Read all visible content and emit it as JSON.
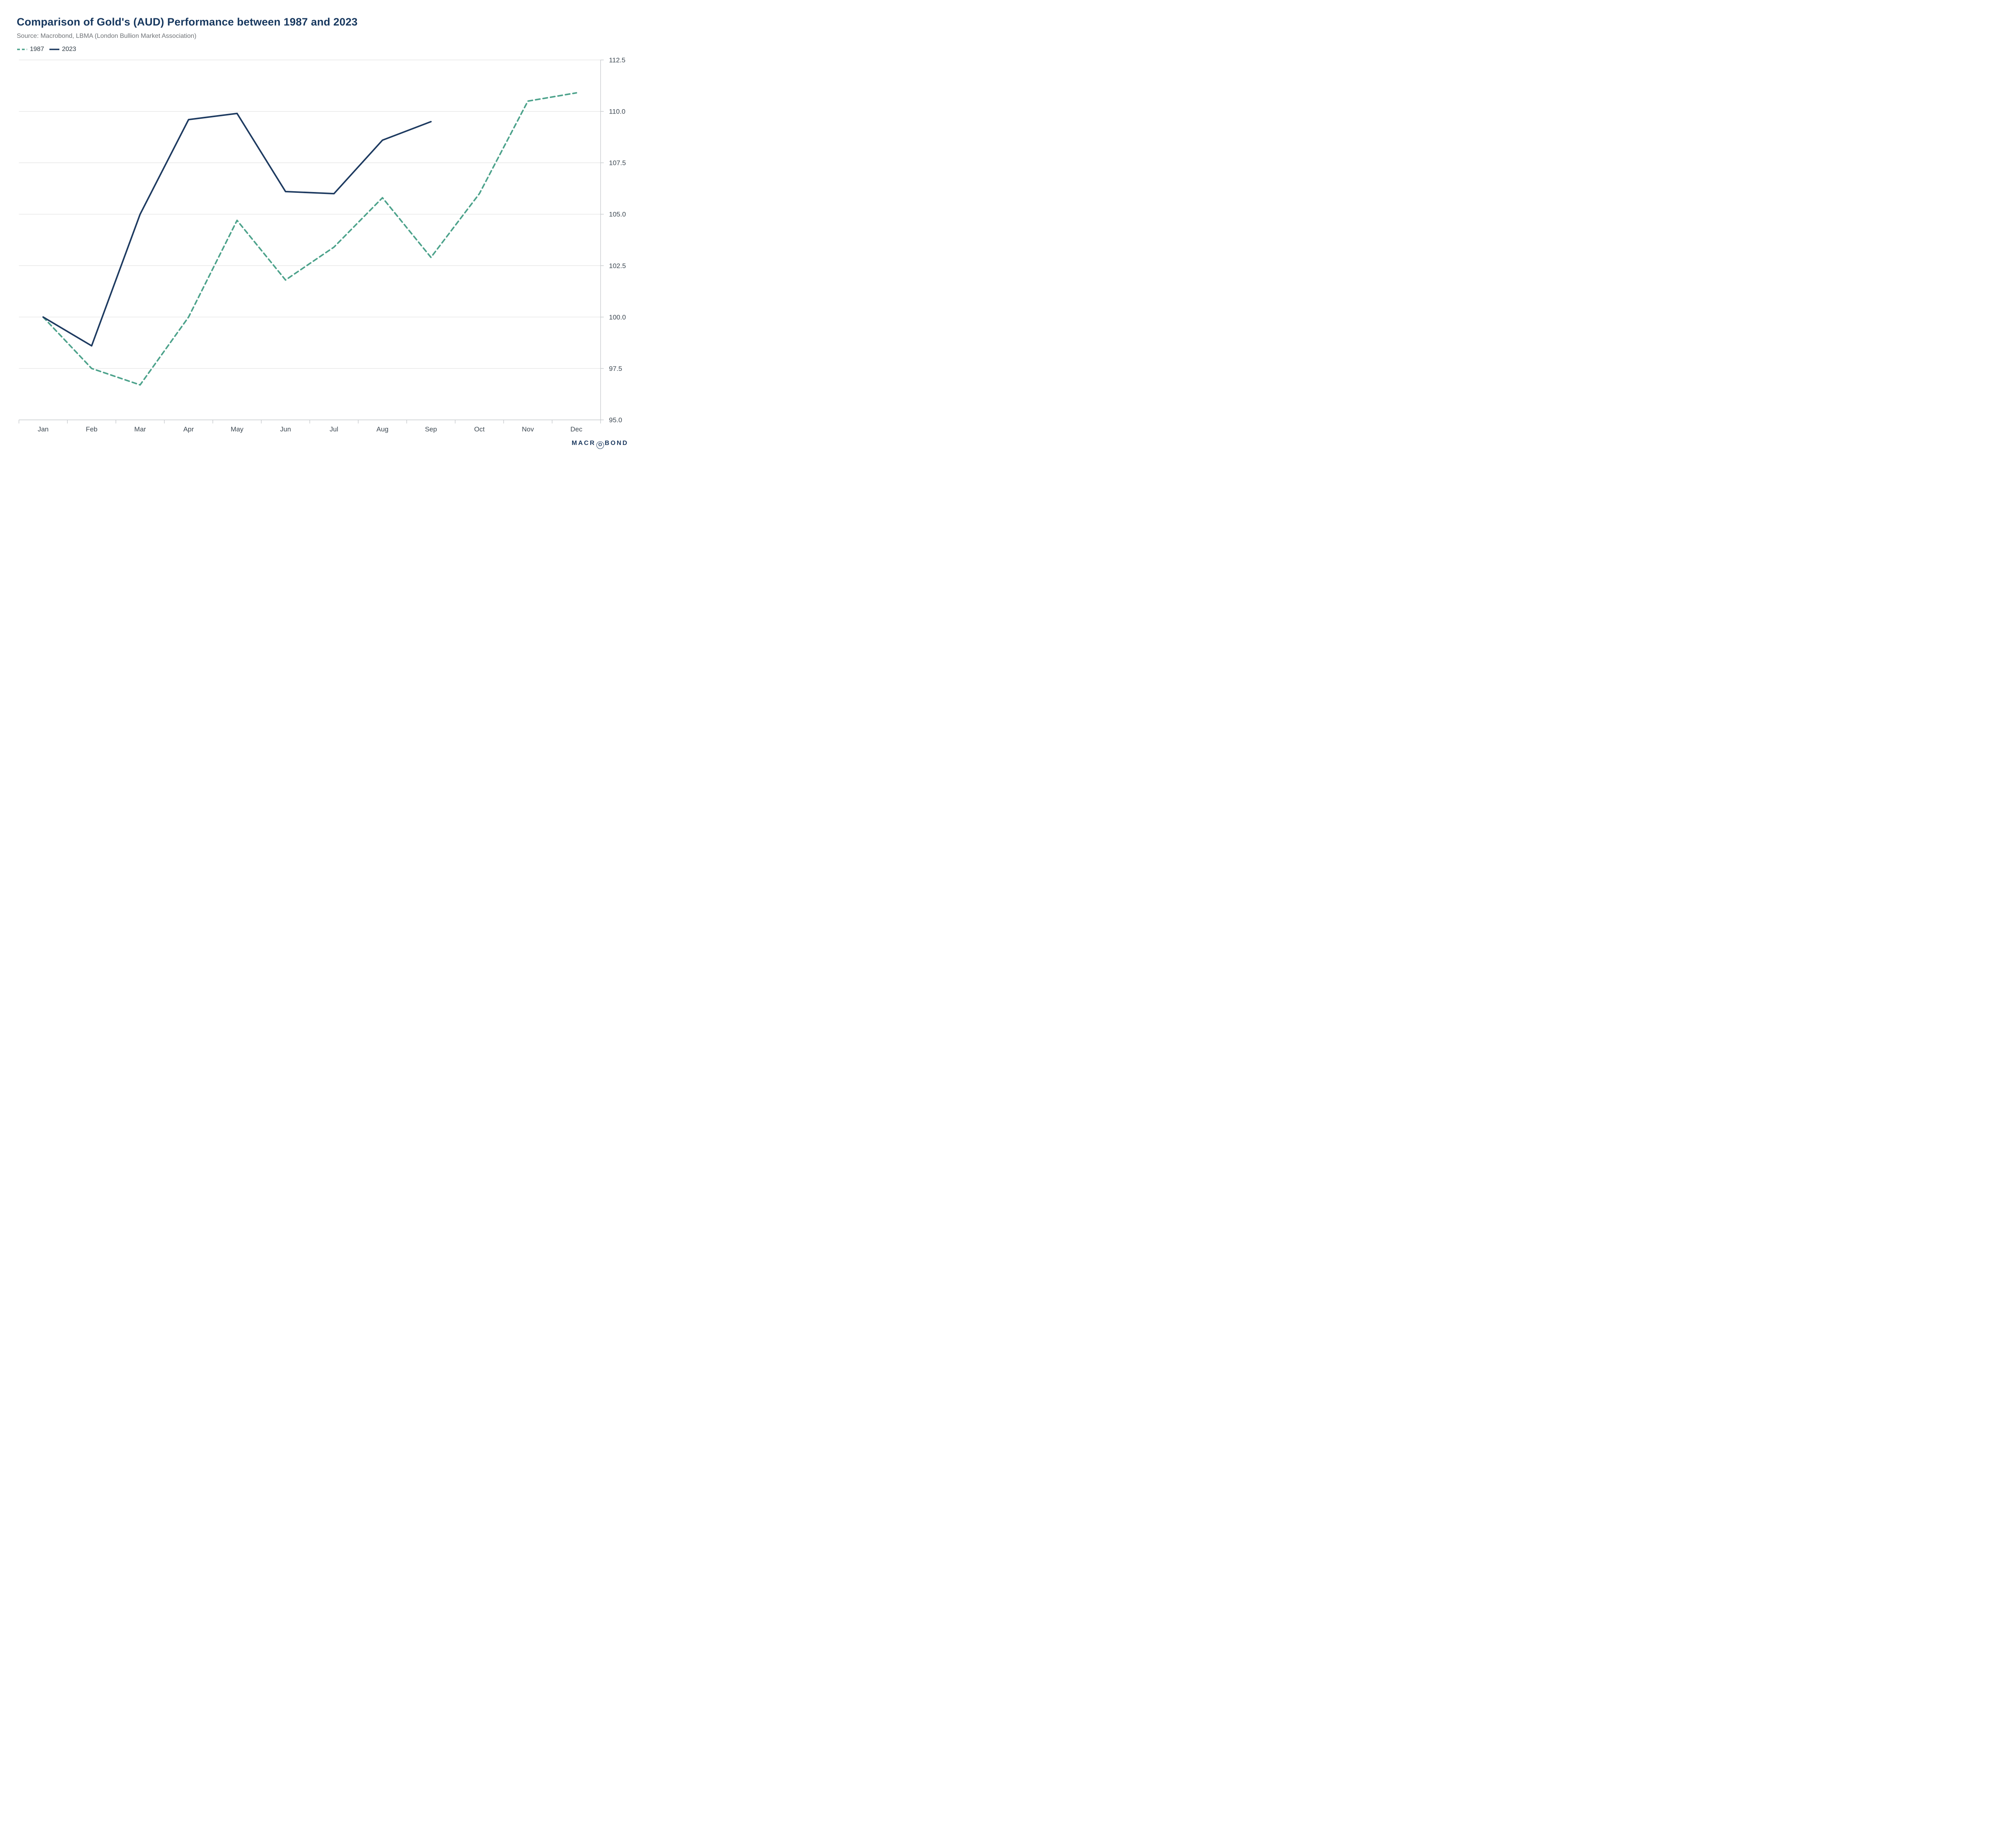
{
  "header": {
    "title": "Comparison of Gold's (AUD) Performance between 1987 and 2023",
    "source": "Source: Macrobond, LBMA (London Bullion Market Association)"
  },
  "legend": {
    "items": [
      {
        "label": "1987",
        "color": "#4ca28b",
        "dashed": true
      },
      {
        "label": "2023",
        "color": "#1d3a60",
        "dashed": false
      }
    ]
  },
  "branding": {
    "logo_pre": "MACR",
    "logo_o": "O",
    "logo_post": "BOND"
  },
  "chart_data": {
    "type": "line",
    "title": "Comparison of Gold's (AUD) Performance between 1987 and 2023",
    "subtitle": "Source: Macrobond, LBMA (London Bullion Market Association)",
    "categories": [
      "Jan",
      "Feb",
      "Mar",
      "Apr",
      "May",
      "Jun",
      "Jul",
      "Aug",
      "Sep",
      "Oct",
      "Nov",
      "Dec"
    ],
    "series": [
      {
        "name": "1987",
        "color": "#4ca28b",
        "dashed": true,
        "values": [
          100.0,
          97.5,
          96.7,
          100.0,
          104.7,
          101.8,
          103.4,
          105.8,
          102.9,
          106.0,
          110.5,
          110.9
        ]
      },
      {
        "name": "2023",
        "color": "#1d3a60",
        "dashed": false,
        "values": [
          100.0,
          98.6,
          105.0,
          109.6,
          109.9,
          106.1,
          106.0,
          108.6,
          109.5
        ]
      }
    ],
    "ylim": [
      95.0,
      112.5
    ],
    "yticks": [
      95.0,
      97.5,
      100.0,
      102.5,
      105.0,
      107.5,
      110.0,
      112.5
    ],
    "y_tick_decimals": 1,
    "y_axis_side": "right",
    "grid": "horizontal-only",
    "legend_position": "top-left",
    "xlabel": "",
    "ylabel": ""
  }
}
